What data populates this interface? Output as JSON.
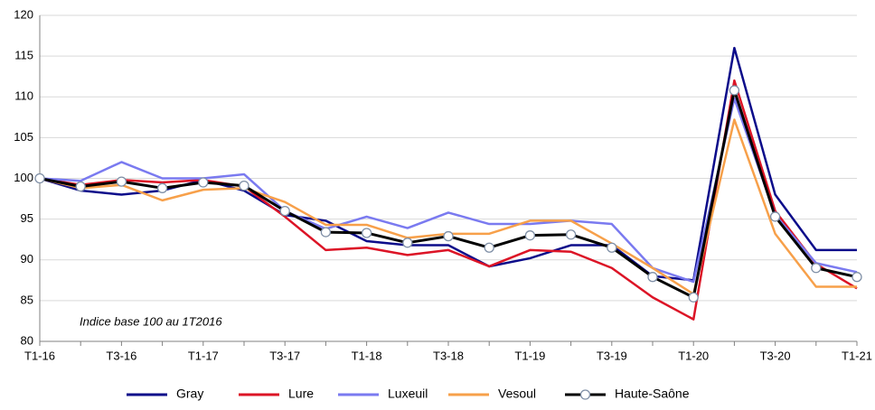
{
  "chart_data": {
    "type": "line",
    "annotation": "Indice base 100 au 1T2016",
    "categories": [
      "T1-16",
      null,
      "T3-16",
      null,
      "T1-17",
      null,
      "T3-17",
      null,
      "T1-18",
      null,
      "T3-18",
      null,
      "T1-19",
      null,
      "T3-19",
      null,
      "T1-20",
      null,
      "T3-20",
      null,
      "T1-21"
    ],
    "ylim": [
      80,
      120
    ],
    "yticks": [
      80,
      85,
      90,
      95,
      100,
      105,
      110,
      115,
      120
    ],
    "grid": true,
    "legend": "bottom",
    "series": [
      {
        "name": "Gray",
        "color": "#0c0c8a",
        "values": [
          100,
          98.5,
          98,
          98.5,
          99.8,
          98.5,
          95.5,
          94.8,
          92.3,
          91.8,
          91.8,
          89.2,
          90.2,
          91.8,
          91.8,
          88,
          87.5,
          116,
          98,
          91.2,
          91.2
        ]
      },
      {
        "name": "Lure",
        "color": "#dc1426",
        "values": [
          100,
          99.2,
          99.8,
          99.5,
          99.8,
          99,
          95.3,
          91.2,
          91.5,
          90.6,
          91.2,
          89.2,
          91.2,
          91,
          89,
          85.4,
          82.7,
          112,
          96,
          89.5,
          86.5
        ]
      },
      {
        "name": "Luxeuil",
        "color": "#7a7af0",
        "values": [
          100,
          99.7,
          102,
          100,
          100,
          100.5,
          96,
          93.8,
          95.3,
          93.9,
          95.8,
          94.4,
          94.4,
          94.8,
          94.4,
          89,
          87.3,
          109.8,
          95.5,
          89.6,
          88.5
        ]
      },
      {
        "name": "Vesoul",
        "color": "#f7a04a",
        "values": [
          100,
          98.8,
          99.2,
          97.3,
          98.6,
          98.8,
          97.1,
          94.3,
          94.3,
          92.7,
          93.2,
          93.2,
          94.8,
          94.8,
          92,
          89,
          85.8,
          107.2,
          93.2,
          86.7,
          86.7
        ]
      },
      {
        "name": "Haute-Saône",
        "color": "#000000",
        "markers": true,
        "values": [
          100,
          99,
          99.6,
          98.8,
          99.5,
          99.1,
          96,
          93.4,
          93.3,
          92.1,
          92.9,
          91.5,
          93,
          93.1,
          91.5,
          87.9,
          85.4,
          110.8,
          95.3,
          89,
          87.9
        ]
      }
    ]
  }
}
